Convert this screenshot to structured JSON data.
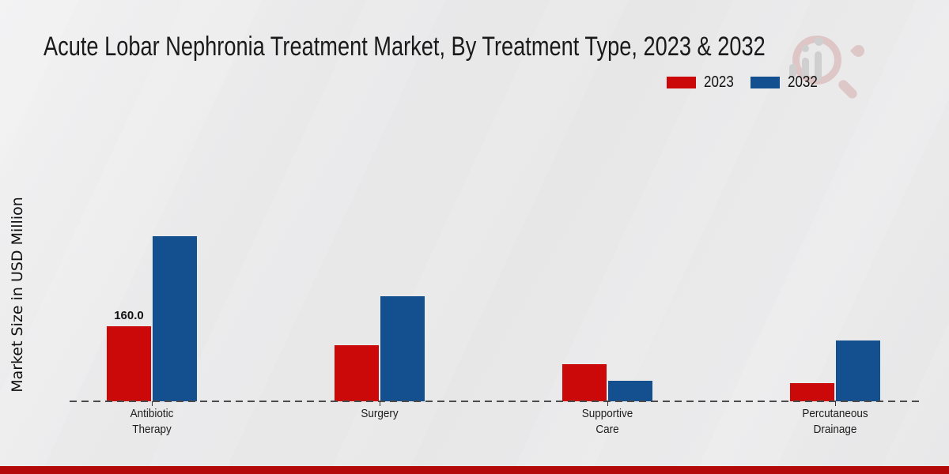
{
  "chart_data": {
    "type": "bar",
    "title": "Acute Lobar Nephronia Treatment Market, By Treatment Type, 2023 & 2032",
    "ylabel": "Market Size in USD Million",
    "xlabel": "",
    "categories": [
      "Antibiotic Therapy",
      "Surgery",
      "Supportive Care",
      "Percutaneous Drainage"
    ],
    "category_label_lines": [
      [
        "Antibiotic",
        "Therapy"
      ],
      [
        "Surgery"
      ],
      [
        "Supportive",
        "Care"
      ],
      [
        "Percutaneous",
        "Drainage"
      ]
    ],
    "series": [
      {
        "name": "2023",
        "color": "#cb0909",
        "values": [
          160,
          120,
          80,
          40
        ]
      },
      {
        "name": "2032",
        "color": "#14508f",
        "values": [
          350,
          223,
          45,
          130
        ]
      }
    ],
    "bar_labels": [
      {
        "series_index": 0,
        "category_index": 0,
        "text": "160.0"
      }
    ],
    "ylim": [
      0,
      380
    ],
    "grid": false,
    "legend_position": "top-right",
    "baseline_style": "dashed"
  },
  "footer": {
    "strip_color": "#b40909"
  },
  "watermark": {
    "name": "market-research-logo"
  }
}
